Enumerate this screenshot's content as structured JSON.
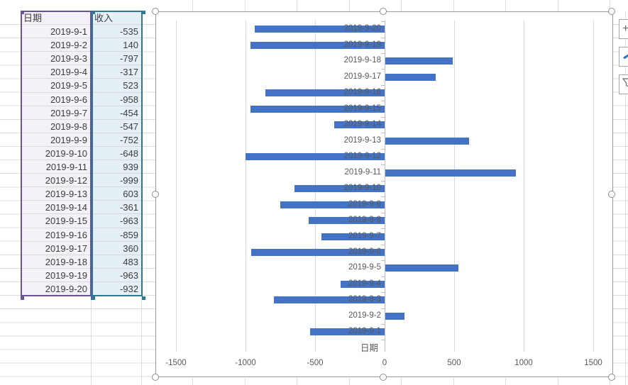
{
  "table": {
    "headers": {
      "date": "日期",
      "income": "收入"
    },
    "rows": [
      {
        "date": "2019-9-1",
        "income": "-535"
      },
      {
        "date": "2019-9-2",
        "income": "140"
      },
      {
        "date": "2019-9-3",
        "income": "-797"
      },
      {
        "date": "2019-9-4",
        "income": "-317"
      },
      {
        "date": "2019-9-5",
        "income": "523"
      },
      {
        "date": "2019-9-6",
        "income": "-958"
      },
      {
        "date": "2019-9-7",
        "income": "-454"
      },
      {
        "date": "2019-9-8",
        "income": "-547"
      },
      {
        "date": "2019-9-9",
        "income": "-752"
      },
      {
        "date": "2019-9-10",
        "income": "-648"
      },
      {
        "date": "2019-9-11",
        "income": "939"
      },
      {
        "date": "2019-9-12",
        "income": "-999"
      },
      {
        "date": "2019-9-13",
        "income": "603"
      },
      {
        "date": "2019-9-14",
        "income": "-361"
      },
      {
        "date": "2019-9-15",
        "income": "-963"
      },
      {
        "date": "2019-9-16",
        "income": "-859"
      },
      {
        "date": "2019-9-17",
        "income": "360"
      },
      {
        "date": "2019-9-18",
        "income": "483"
      },
      {
        "date": "2019-9-19",
        "income": "-963"
      },
      {
        "date": "2019-9-20",
        "income": "-932"
      }
    ]
  },
  "chart_data": {
    "type": "bar",
    "orientation": "horizontal",
    "title": "",
    "axis_title": "日期",
    "categories": [
      "2019-9-1",
      "2019-9-2",
      "2019-9-3",
      "2019-9-4",
      "2019-9-5",
      "2019-9-6",
      "2019-9-7",
      "2019-9-8",
      "2019-9-9",
      "2019-9-10",
      "2019-9-11",
      "2019-9-12",
      "2019-9-13",
      "2019-9-14",
      "2019-9-15",
      "2019-9-16",
      "2019-9-17",
      "2019-9-18",
      "2019-9-19",
      "2019-9-20"
    ],
    "series": [
      {
        "name": "收入",
        "values": [
          -535,
          140,
          -797,
          -317,
          523,
          -958,
          -454,
          -547,
          -752,
          -648,
          939,
          -999,
          603,
          -361,
          -963,
          -859,
          360,
          483,
          -963,
          -932
        ]
      }
    ],
    "value_ticks": [
      "-1500",
      "-1000",
      "-500",
      "0",
      "500",
      "1000",
      "1500"
    ],
    "xlim": [
      -1500,
      1500
    ],
    "category_order_on_chart": "2019-9-20 at top, 2019-9-1 at bottom",
    "grid": true,
    "legend": "none",
    "bar_color": "#4472c4",
    "label_color": "#595959",
    "gridline_color": "#d9d9d9"
  },
  "selection": {
    "category_range_border": "#6a5594",
    "category_range_fill": "#f4f1f9",
    "value_range_border": "#2f7795",
    "value_range_fill": "#e5eff6"
  },
  "chart_buttons": {
    "add_element_glyph": "+",
    "styles_icon": "brush-icon",
    "filters_icon": "funnel-icon"
  }
}
